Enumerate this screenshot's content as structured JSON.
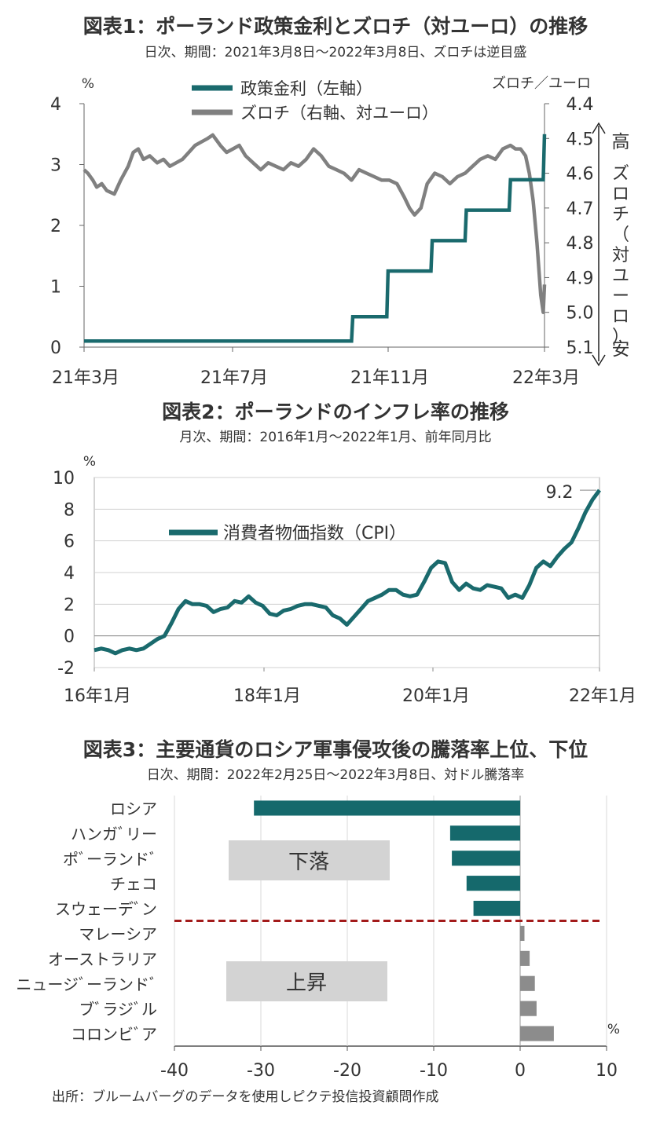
{
  "colors": {
    "policy": "#1a6a6d",
    "zloty": "#808080",
    "cpi": "#1a6a6d",
    "bar_down": "#15696c",
    "bar_up": "#8c8c8c",
    "divider": "#a31b1b",
    "box": "#d3d3d3"
  },
  "footer": {
    "source": "出所：ブルームバーグのデータを使用しピクテ投信投資顧問作成"
  },
  "chart_data": [
    {
      "type": "line",
      "title": "図表1：ポーランド政策金利とズロチ（対ユーロ）の推移",
      "subtitle": "日次、期間：2021年3月8日～2022年3月8日、ズロチは逆目盛",
      "left_unit": "%",
      "right_unit": "ズロチ／ユーロ",
      "right_axis_label": "ズロチ（対ユーロ）",
      "right_high": "高",
      "right_low": "安",
      "x_ticks": [
        "21年3月",
        "21年7月",
        "21年11月",
        "22年3月"
      ],
      "left_ylim": [
        0,
        4
      ],
      "left_ticks": [
        "0",
        "1",
        "2",
        "3",
        "4"
      ],
      "right_ylim": [
        4.4,
        5.1
      ],
      "right_inverted": true,
      "right_ticks": [
        "4.4",
        "4.5",
        "4.6",
        "4.7",
        "4.8",
        "4.9",
        "5.0",
        "5.1"
      ],
      "legend": [
        "政策金利（左軸）",
        "ズロチ（右軸、対ユーロ）"
      ],
      "series": [
        {
          "name": "政策金利（左軸）",
          "axis": "left",
          "points": [
            [
              "2021-03-08",
              0.1
            ],
            [
              "2021-10-06",
              0.1
            ],
            [
              "2021-10-07",
              0.5
            ],
            [
              "2021-11-03",
              0.5
            ],
            [
              "2021-11-04",
              1.25
            ],
            [
              "2021-12-08",
              1.25
            ],
            [
              "2021-12-09",
              1.75
            ],
            [
              "2022-01-04",
              1.75
            ],
            [
              "2022-01-05",
              2.25
            ],
            [
              "2022-02-08",
              2.25
            ],
            [
              "2022-02-09",
              2.75
            ],
            [
              "2022-03-07",
              2.75
            ],
            [
              "2022-03-08",
              3.5
            ]
          ]
        },
        {
          "name": "ズロチ（右軸、対ユーロ）",
          "axis": "right",
          "points": [
            [
              "2021-03-08",
              4.59
            ],
            [
              "2021-03-11",
              4.6
            ],
            [
              "2021-03-15",
              4.62
            ],
            [
              "2021-03-18",
              4.64
            ],
            [
              "2021-03-22",
              4.63
            ],
            [
              "2021-03-26",
              4.65
            ],
            [
              "2021-04-01",
              4.66
            ],
            [
              "2021-04-06",
              4.62
            ],
            [
              "2021-04-12",
              4.58
            ],
            [
              "2021-04-16",
              4.54
            ],
            [
              "2021-04-20",
              4.53
            ],
            [
              "2021-04-24",
              4.56
            ],
            [
              "2021-04-29",
              4.55
            ],
            [
              "2021-05-05",
              4.57
            ],
            [
              "2021-05-10",
              4.56
            ],
            [
              "2021-05-15",
              4.58
            ],
            [
              "2021-05-20",
              4.57
            ],
            [
              "2021-05-25",
              4.56
            ],
            [
              "2021-05-30",
              4.54
            ],
            [
              "2021-06-04",
              4.52
            ],
            [
              "2021-06-09",
              4.51
            ],
            [
              "2021-06-14",
              4.5
            ],
            [
              "2021-06-18",
              4.49
            ],
            [
              "2021-06-24",
              4.52
            ],
            [
              "2021-06-29",
              4.54
            ],
            [
              "2021-07-04",
              4.53
            ],
            [
              "2021-07-09",
              4.52
            ],
            [
              "2021-07-14",
              4.55
            ],
            [
              "2021-07-20",
              4.57
            ],
            [
              "2021-07-26",
              4.59
            ],
            [
              "2021-08-01",
              4.57
            ],
            [
              "2021-08-07",
              4.58
            ],
            [
              "2021-08-13",
              4.59
            ],
            [
              "2021-08-19",
              4.57
            ],
            [
              "2021-08-25",
              4.58
            ],
            [
              "2021-08-31",
              4.56
            ],
            [
              "2021-09-06",
              4.53
            ],
            [
              "2021-09-12",
              4.55
            ],
            [
              "2021-09-18",
              4.58
            ],
            [
              "2021-09-24",
              4.59
            ],
            [
              "2021-09-30",
              4.6
            ],
            [
              "2021-10-06",
              4.62
            ],
            [
              "2021-10-12",
              4.59
            ],
            [
              "2021-10-18",
              4.6
            ],
            [
              "2021-10-24",
              4.61
            ],
            [
              "2021-10-30",
              4.62
            ],
            [
              "2021-11-05",
              4.62
            ],
            [
              "2021-11-11",
              4.63
            ],
            [
              "2021-11-17",
              4.67
            ],
            [
              "2021-11-21",
              4.7
            ],
            [
              "2021-11-25",
              4.72
            ],
            [
              "2021-11-30",
              4.7
            ],
            [
              "2021-12-05",
              4.63
            ],
            [
              "2021-12-11",
              4.6
            ],
            [
              "2021-12-17",
              4.61
            ],
            [
              "2021-12-23",
              4.63
            ],
            [
              "2021-12-29",
              4.61
            ],
            [
              "2022-01-04",
              4.6
            ],
            [
              "2022-01-10",
              4.58
            ],
            [
              "2022-01-16",
              4.56
            ],
            [
              "2022-01-22",
              4.55
            ],
            [
              "2022-01-28",
              4.56
            ],
            [
              "2022-02-03",
              4.53
            ],
            [
              "2022-02-09",
              4.52
            ],
            [
              "2022-02-13",
              4.53
            ],
            [
              "2022-02-17",
              4.53
            ],
            [
              "2022-02-21",
              4.55
            ],
            [
              "2022-02-24",
              4.6
            ],
            [
              "2022-02-27",
              4.68
            ],
            [
              "2022-03-02",
              4.8
            ],
            [
              "2022-03-05",
              4.95
            ],
            [
              "2022-03-07",
              5.0
            ],
            [
              "2022-03-08",
              4.92
            ]
          ]
        }
      ]
    },
    {
      "type": "line",
      "title": "図表2：ポーランドのインフレ率の推移",
      "subtitle": "月次、期間：2016年1月～2022年1月、前年同月比",
      "y_unit": "%",
      "ylim": [
        -2,
        10
      ],
      "y_ticks": [
        "10",
        "8",
        "6",
        "4",
        "2",
        "0",
        "-2"
      ],
      "x_ticks": [
        "16年1月",
        "18年1月",
        "20年1月",
        "22年1月"
      ],
      "end_label": "9.2",
      "series": [
        {
          "name": "消費者物価指数（CPI）",
          "points": [
            [
              "2016-01",
              -0.9
            ],
            [
              "2016-02",
              -0.8
            ],
            [
              "2016-03",
              -0.9
            ],
            [
              "2016-04",
              -1.1
            ],
            [
              "2016-05",
              -0.9
            ],
            [
              "2016-06",
              -0.8
            ],
            [
              "2016-07",
              -0.9
            ],
            [
              "2016-08",
              -0.8
            ],
            [
              "2016-09",
              -0.5
            ],
            [
              "2016-10",
              -0.2
            ],
            [
              "2016-11",
              0.0
            ],
            [
              "2016-12",
              0.8
            ],
            [
              "2017-01",
              1.7
            ],
            [
              "2017-02",
              2.2
            ],
            [
              "2017-03",
              2.0
            ],
            [
              "2017-04",
              2.0
            ],
            [
              "2017-05",
              1.9
            ],
            [
              "2017-06",
              1.5
            ],
            [
              "2017-07",
              1.7
            ],
            [
              "2017-08",
              1.8
            ],
            [
              "2017-09",
              2.2
            ],
            [
              "2017-10",
              2.1
            ],
            [
              "2017-11",
              2.5
            ],
            [
              "2017-12",
              2.1
            ],
            [
              "2018-01",
              1.9
            ],
            [
              "2018-02",
              1.4
            ],
            [
              "2018-03",
              1.3
            ],
            [
              "2018-04",
              1.6
            ],
            [
              "2018-05",
              1.7
            ],
            [
              "2018-06",
              1.9
            ],
            [
              "2018-07",
              2.0
            ],
            [
              "2018-08",
              2.0
            ],
            [
              "2018-09",
              1.9
            ],
            [
              "2018-10",
              1.8
            ],
            [
              "2018-11",
              1.3
            ],
            [
              "2018-12",
              1.1
            ],
            [
              "2019-01",
              0.7
            ],
            [
              "2019-02",
              1.2
            ],
            [
              "2019-03",
              1.7
            ],
            [
              "2019-04",
              2.2
            ],
            [
              "2019-05",
              2.4
            ],
            [
              "2019-06",
              2.6
            ],
            [
              "2019-07",
              2.9
            ],
            [
              "2019-08",
              2.9
            ],
            [
              "2019-09",
              2.6
            ],
            [
              "2019-10",
              2.5
            ],
            [
              "2019-11",
              2.6
            ],
            [
              "2019-12",
              3.4
            ],
            [
              "2020-01",
              4.3
            ],
            [
              "2020-02",
              4.7
            ],
            [
              "2020-03",
              4.6
            ],
            [
              "2020-04",
              3.4
            ],
            [
              "2020-05",
              2.9
            ],
            [
              "2020-06",
              3.3
            ],
            [
              "2020-07",
              3.0
            ],
            [
              "2020-08",
              2.9
            ],
            [
              "2020-09",
              3.2
            ],
            [
              "2020-10",
              3.1
            ],
            [
              "2020-11",
              3.0
            ],
            [
              "2020-12",
              2.4
            ],
            [
              "2021-01",
              2.6
            ],
            [
              "2021-02",
              2.4
            ],
            [
              "2021-03",
              3.2
            ],
            [
              "2021-04",
              4.3
            ],
            [
              "2021-05",
              4.7
            ],
            [
              "2021-06",
              4.4
            ],
            [
              "2021-07",
              5.0
            ],
            [
              "2021-08",
              5.5
            ],
            [
              "2021-09",
              5.9
            ],
            [
              "2021-10",
              6.8
            ],
            [
              "2021-11",
              7.8
            ],
            [
              "2021-12",
              8.6
            ],
            [
              "2022-01",
              9.2
            ]
          ]
        }
      ]
    },
    {
      "type": "bar",
      "orientation": "horizontal",
      "title": "図表3：主要通貨のロシア軍事侵攻後の騰落率上位、下位",
      "subtitle": "日次、期間：2022年2月25日～2022年3月8日、対ドル騰落率",
      "x_unit": "%",
      "xlim": [
        -40,
        10
      ],
      "x_ticks": [
        "-40",
        "-30",
        "-20",
        "-10",
        "0",
        "10"
      ],
      "group_labels": {
        "down": "下落",
        "up": "上昇"
      },
      "categories": [
        "ロシア",
        "ハンガリー",
        "ポーランド",
        "チェコ",
        "スウェーデン",
        "マレーシア",
        "オーストラリア",
        "ニュージーランド",
        "ブラジル",
        "コロンビア"
      ],
      "category_labels": [
        "ロシア",
        "ハンガﾞリー",
        "ポﾞーランドﾞ",
        "チェコ",
        "スウェーデﾞン",
        "マレーシア",
        "オーストラリア",
        "ニュージﾞーランドﾞ",
        "ブﾞラジﾞル",
        "コロンビﾞア"
      ],
      "values": [
        -30.8,
        -8.1,
        -7.9,
        -6.2,
        -5.4,
        0.5,
        1.1,
        1.7,
        1.9,
        3.9
      ]
    }
  ]
}
